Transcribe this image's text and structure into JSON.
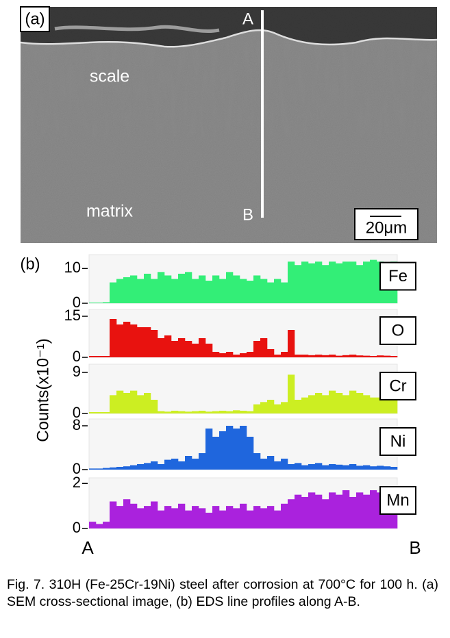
{
  "panel_a": {
    "label": "(a)",
    "layer_top": "scale",
    "layer_bottom": "matrix",
    "point_start": "A",
    "point_end": "B",
    "scale_bar": "20μm"
  },
  "panel_b": {
    "label": "(b)",
    "ylabel": "Counts(x10⁻¹)",
    "x_start": "A",
    "x_end": "B"
  },
  "chart_data": [
    {
      "type": "bar",
      "label": "Fe",
      "color": "#33ee77",
      "ylim": [
        0,
        14
      ],
      "yticks": [
        0,
        10
      ],
      "values": [
        0.2,
        0.2,
        0.3,
        6,
        7,
        7.5,
        8,
        7,
        8.5,
        7,
        9,
        8,
        7,
        8.5,
        9,
        7,
        8,
        6.5,
        8,
        7,
        9,
        8,
        7,
        6.5,
        8,
        7,
        6,
        7,
        6,
        12,
        11,
        12,
        11.5,
        12,
        11,
        12,
        11.5,
        12,
        12,
        11,
        12,
        12.5,
        12,
        11.5,
        12
      ]
    },
    {
      "type": "bar",
      "label": "O",
      "color": "#e8120f",
      "ylim": [
        0,
        17.5
      ],
      "yticks": [
        0,
        15
      ],
      "values": [
        0.5,
        0.5,
        0.5,
        14,
        12,
        13,
        12,
        11,
        11,
        10,
        7,
        8,
        6,
        7,
        6,
        5,
        7,
        5,
        2,
        1.5,
        2,
        1,
        1.5,
        2,
        6,
        7,
        3,
        1,
        2,
        10,
        1,
        1,
        0.8,
        1,
        0.8,
        1,
        0.6,
        0.8,
        1,
        0.7,
        0.6,
        0.5,
        0.7,
        0.6,
        0.5
      ]
    },
    {
      "type": "bar",
      "label": "Cr",
      "color": "#ccee22",
      "ylim": [
        0,
        10.8
      ],
      "yticks": [
        0,
        9
      ],
      "values": [
        0.3,
        0.3,
        0.3,
        4,
        5,
        4.5,
        5,
        4,
        4.5,
        3,
        0.5,
        0.4,
        0.6,
        0.5,
        0.4,
        0.5,
        0.6,
        0.4,
        0.5,
        0.6,
        0.5,
        0.7,
        0.6,
        0.5,
        2,
        2.5,
        3,
        2,
        2.5,
        8.5,
        3,
        3.5,
        4,
        4.5,
        4,
        5,
        4.5,
        4,
        5,
        4.5,
        4,
        3.5,
        3.5,
        3,
        3
      ]
    },
    {
      "type": "bar",
      "label": "Ni",
      "color": "#1f66dd",
      "ylim": [
        0,
        9.25
      ],
      "yticks": [
        0,
        8
      ],
      "values": [
        0.2,
        0.2,
        0.3,
        0.4,
        0.5,
        0.6,
        0.8,
        1,
        1.2,
        1.5,
        1,
        1.8,
        2,
        1.5,
        2.5,
        2,
        3,
        7.5,
        6,
        7,
        8,
        7.5,
        8,
        6,
        3,
        2,
        2.5,
        1.5,
        2,
        1,
        1.2,
        0.8,
        1,
        1.2,
        0.8,
        1,
        0.9,
        0.8,
        1,
        0.7,
        0.8,
        0.6,
        0.7,
        0.6,
        0.5
      ]
    },
    {
      "type": "bar",
      "label": "Mn",
      "color": "#aa22dd",
      "ylim": [
        0,
        2.25
      ],
      "yticks": [
        0,
        2
      ],
      "values": [
        0.3,
        0.2,
        0.3,
        1.2,
        1,
        1.3,
        1.1,
        0.9,
        1,
        1.2,
        0.8,
        1,
        0.9,
        1.1,
        0.8,
        1,
        0.9,
        0.7,
        1,
        0.8,
        1,
        0.9,
        1.1,
        0.8,
        1,
        0.9,
        1,
        0.8,
        1.1,
        1.3,
        1.5,
        1.4,
        1.6,
        1.5,
        1.3,
        1.6,
        1.5,
        1.7,
        1.4,
        1.6,
        1.5,
        1.7,
        1.6,
        1.5,
        1.7
      ]
    }
  ],
  "caption": "Fig. 7. 310H (Fe-25Cr-19Ni) steel after corrosion at 700°C for 100 h. (a) SEM cross-sectional image, (b) EDS line profiles along A-B."
}
